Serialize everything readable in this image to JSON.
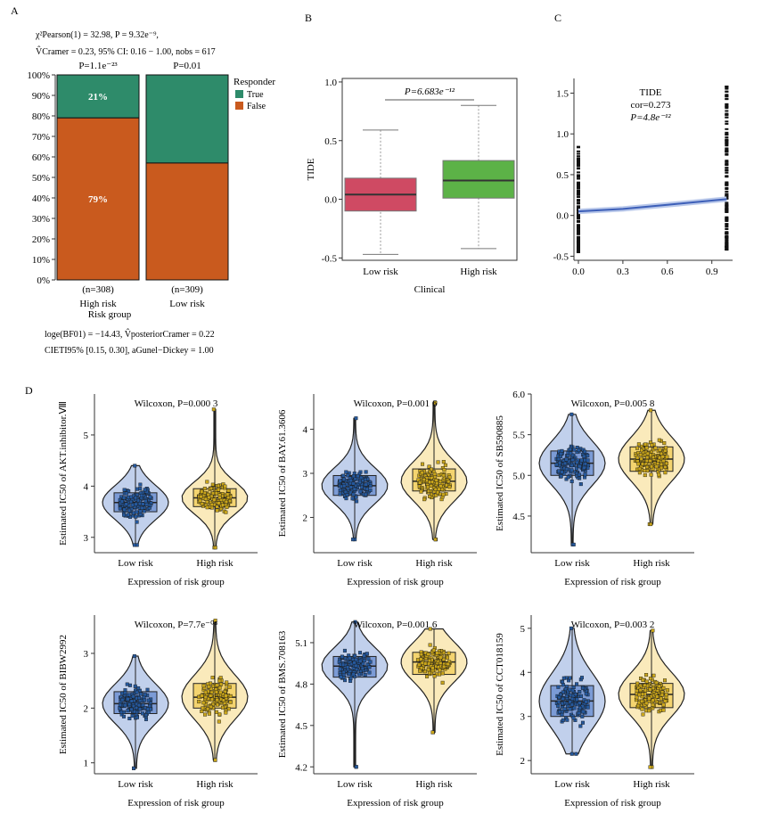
{
  "panel_labels": {
    "a": "A",
    "b": "B",
    "c": "C",
    "d": "D"
  },
  "colors": {
    "true": "#2e8b6a",
    "false": "#c95a1e",
    "box_low": "#cf4a63",
    "box_high": "#5cb247",
    "low_fill": "#4c78c8",
    "high_fill": "#f0c43c",
    "low_pt": "#25589c",
    "high_pt": "#c9a51b"
  },
  "panel_a": {
    "stat1": "χ²Pearson(1) = 32.98, P = 9.32e⁻⁹,",
    "stat2": "V̂Cramer = 0.23, 95% CI: 0.16 − 1.00, nobs = 617",
    "footer1": "loge(BF01) = −14.43, V̂posteriorCramer = 0.22",
    "footer2": "CIETI95% [0.15, 0.30], aGunel−Dickey = 1.00",
    "chart_data": {
      "type": "bar",
      "stacked": true,
      "categories": [
        "High risk",
        "Low risk"
      ],
      "n_labels": [
        "(n=308)",
        "(n=309)"
      ],
      "p_labels": [
        "P=1.1e⁻²³",
        "P=0.01"
      ],
      "series": [
        {
          "name": "True",
          "values": [
            21,
            43
          ]
        },
        {
          "name": "False",
          "values": [
            79,
            57
          ]
        }
      ],
      "data_labels": {
        "true_high": "21%",
        "false_high": "79%"
      },
      "yticks": [
        "0%",
        "10%",
        "20%",
        "30%",
        "40%",
        "50%",
        "60%",
        "70%",
        "80%",
        "90%",
        "100%"
      ],
      "ylim": [
        0,
        100
      ],
      "xlabel": "Risk group",
      "legend_title": "Responder",
      "legend": [
        "True",
        "False"
      ]
    }
  },
  "panel_b": {
    "chart_data": {
      "type": "box",
      "categories": [
        "Low risk",
        "High risk"
      ],
      "boxes": [
        {
          "q1": -0.1,
          "median": 0.04,
          "q3": 0.18,
          "whisker_low": -0.47,
          "whisker_high": 0.59
        },
        {
          "q1": 0.01,
          "median": 0.16,
          "q3": 0.33,
          "whisker_low": -0.42,
          "whisker_high": 0.8
        }
      ],
      "pvalue": "P=6.683e⁻¹²",
      "ylabel": "TIDE",
      "xlabel": "Clinical",
      "yticks": [
        "-0.5",
        "0.0",
        "0.5",
        "1.0"
      ],
      "ylim": [
        -0.52,
        1.03
      ]
    }
  },
  "panel_c": {
    "chart_data": {
      "type": "scatter",
      "x_groups": [
        0.0,
        1.0
      ],
      "ranges": [
        [
          -0.45,
          0.85
        ],
        [
          -0.42,
          1.6
        ]
      ],
      "trend": [
        [
          0.0,
          0.05
        ],
        [
          0.3,
          0.08
        ],
        [
          0.6,
          0.13
        ],
        [
          1.0,
          0.2
        ]
      ],
      "title": "TIDE",
      "cor": "cor=0.273",
      "pvalue": "P=4.8e⁻¹²",
      "xticks": [
        "0.0",
        "0.3",
        "0.6",
        "0.9"
      ],
      "yticks": [
        "-0.5",
        "0.0",
        "0.5",
        "1.0",
        "1.5"
      ],
      "xlim": [
        -0.03,
        1.04
      ],
      "ylim": [
        -0.55,
        1.68
      ]
    }
  },
  "panel_d": {
    "xlabel": "Expression of risk group",
    "groups": [
      "Low risk",
      "High risk"
    ],
    "chart_data": [
      {
        "type": "violin",
        "drug": "AKT.inhibitor.Ⅷ",
        "ylabel": "Estimated IC50 of AKT.inhibitor.Ⅷ",
        "pvalue": "Wilcoxon, P=0.000 3",
        "ylim": [
          2.7,
          5.8
        ],
        "yticks": [
          3,
          4,
          5
        ],
        "ytick_labels": [
          "3",
          "4",
          "5"
        ],
        "boxes": [
          {
            "q1": 3.5,
            "median": 3.68,
            "q3": 3.87,
            "min": 2.85,
            "max": 4.4
          },
          {
            "q1": 3.6,
            "median": 3.77,
            "q3": 3.95,
            "min": 2.8,
            "max": 5.5
          }
        ]
      },
      {
        "type": "violin",
        "drug": "BAY.61.3606",
        "ylabel": "Estimated IC50 of BAY.61.3606",
        "pvalue": "Wilcoxon, P=0.001 6",
        "ylim": [
          1.2,
          4.8
        ],
        "yticks": [
          2,
          3,
          4
        ],
        "ytick_labels": [
          "2",
          "3",
          "4"
        ],
        "boxes": [
          {
            "q1": 2.5,
            "median": 2.72,
            "q3": 2.95,
            "min": 1.5,
            "max": 4.25
          },
          {
            "q1": 2.6,
            "median": 2.82,
            "q3": 3.1,
            "min": 1.5,
            "max": 4.6
          }
        ]
      },
      {
        "type": "violin",
        "drug": "SB590885",
        "ylabel": "Estimated IC50 of SB590885",
        "pvalue": "Wilcoxon, P=0.005 8",
        "ylim": [
          4.05,
          6.0
        ],
        "yticks": [
          4.5,
          5.0,
          5.5,
          6.0
        ],
        "ytick_labels": [
          "4.5",
          "5.0",
          "5.5",
          "6.0"
        ],
        "boxes": [
          {
            "q1": 5.0,
            "median": 5.15,
            "q3": 5.3,
            "min": 4.15,
            "max": 5.75
          },
          {
            "q1": 5.05,
            "median": 5.2,
            "q3": 5.35,
            "min": 4.4,
            "max": 5.8
          }
        ]
      },
      {
        "type": "violin",
        "drug": "BIBW2992",
        "ylabel": "Estimated IC50 of BIBW2992",
        "pvalue": "Wilcoxon, P=7.7e⁻⁰⁸",
        "ylim": [
          0.8,
          3.7
        ],
        "yticks": [
          1,
          2,
          3
        ],
        "ytick_labels": [
          "1",
          "2",
          "3"
        ],
        "boxes": [
          {
            "q1": 1.9,
            "median": 2.08,
            "q3": 2.3,
            "min": 0.9,
            "max": 2.95
          },
          {
            "q1": 2.0,
            "median": 2.2,
            "q3": 2.45,
            "min": 1.05,
            "max": 3.6
          }
        ]
      },
      {
        "type": "violin",
        "drug": "BMS.708163",
        "ylabel": "Estimated IC50 of BMS.708163",
        "pvalue": "Wilcoxon, P=0.001 6",
        "ylim": [
          4.15,
          5.3
        ],
        "yticks": [
          4.2,
          4.5,
          4.8,
          5.1
        ],
        "ytick_labels": [
          "4.2",
          "4.5",
          "4.8",
          "5.1"
        ],
        "boxes": [
          {
            "q1": 4.85,
            "median": 4.93,
            "q3": 5.0,
            "min": 4.2,
            "max": 5.25
          },
          {
            "q1": 4.87,
            "median": 4.96,
            "q3": 5.03,
            "min": 4.45,
            "max": 5.2
          }
        ]
      },
      {
        "type": "violin",
        "drug": "CCT018159",
        "ylabel": "Estimated IC50 of CCT018159",
        "pvalue": "Wilcoxon, P=0.003 2",
        "ylim": [
          1.7,
          5.3
        ],
        "yticks": [
          2,
          3,
          4,
          5
        ],
        "ytick_labels": [
          "2",
          "3",
          "4",
          "5"
        ],
        "boxes": [
          {
            "q1": 3.0,
            "median": 3.35,
            "q3": 3.7,
            "min": 2.15,
            "max": 5.0
          },
          {
            "q1": 3.2,
            "median": 3.5,
            "q3": 3.75,
            "min": 1.85,
            "max": 4.95
          }
        ]
      }
    ]
  }
}
